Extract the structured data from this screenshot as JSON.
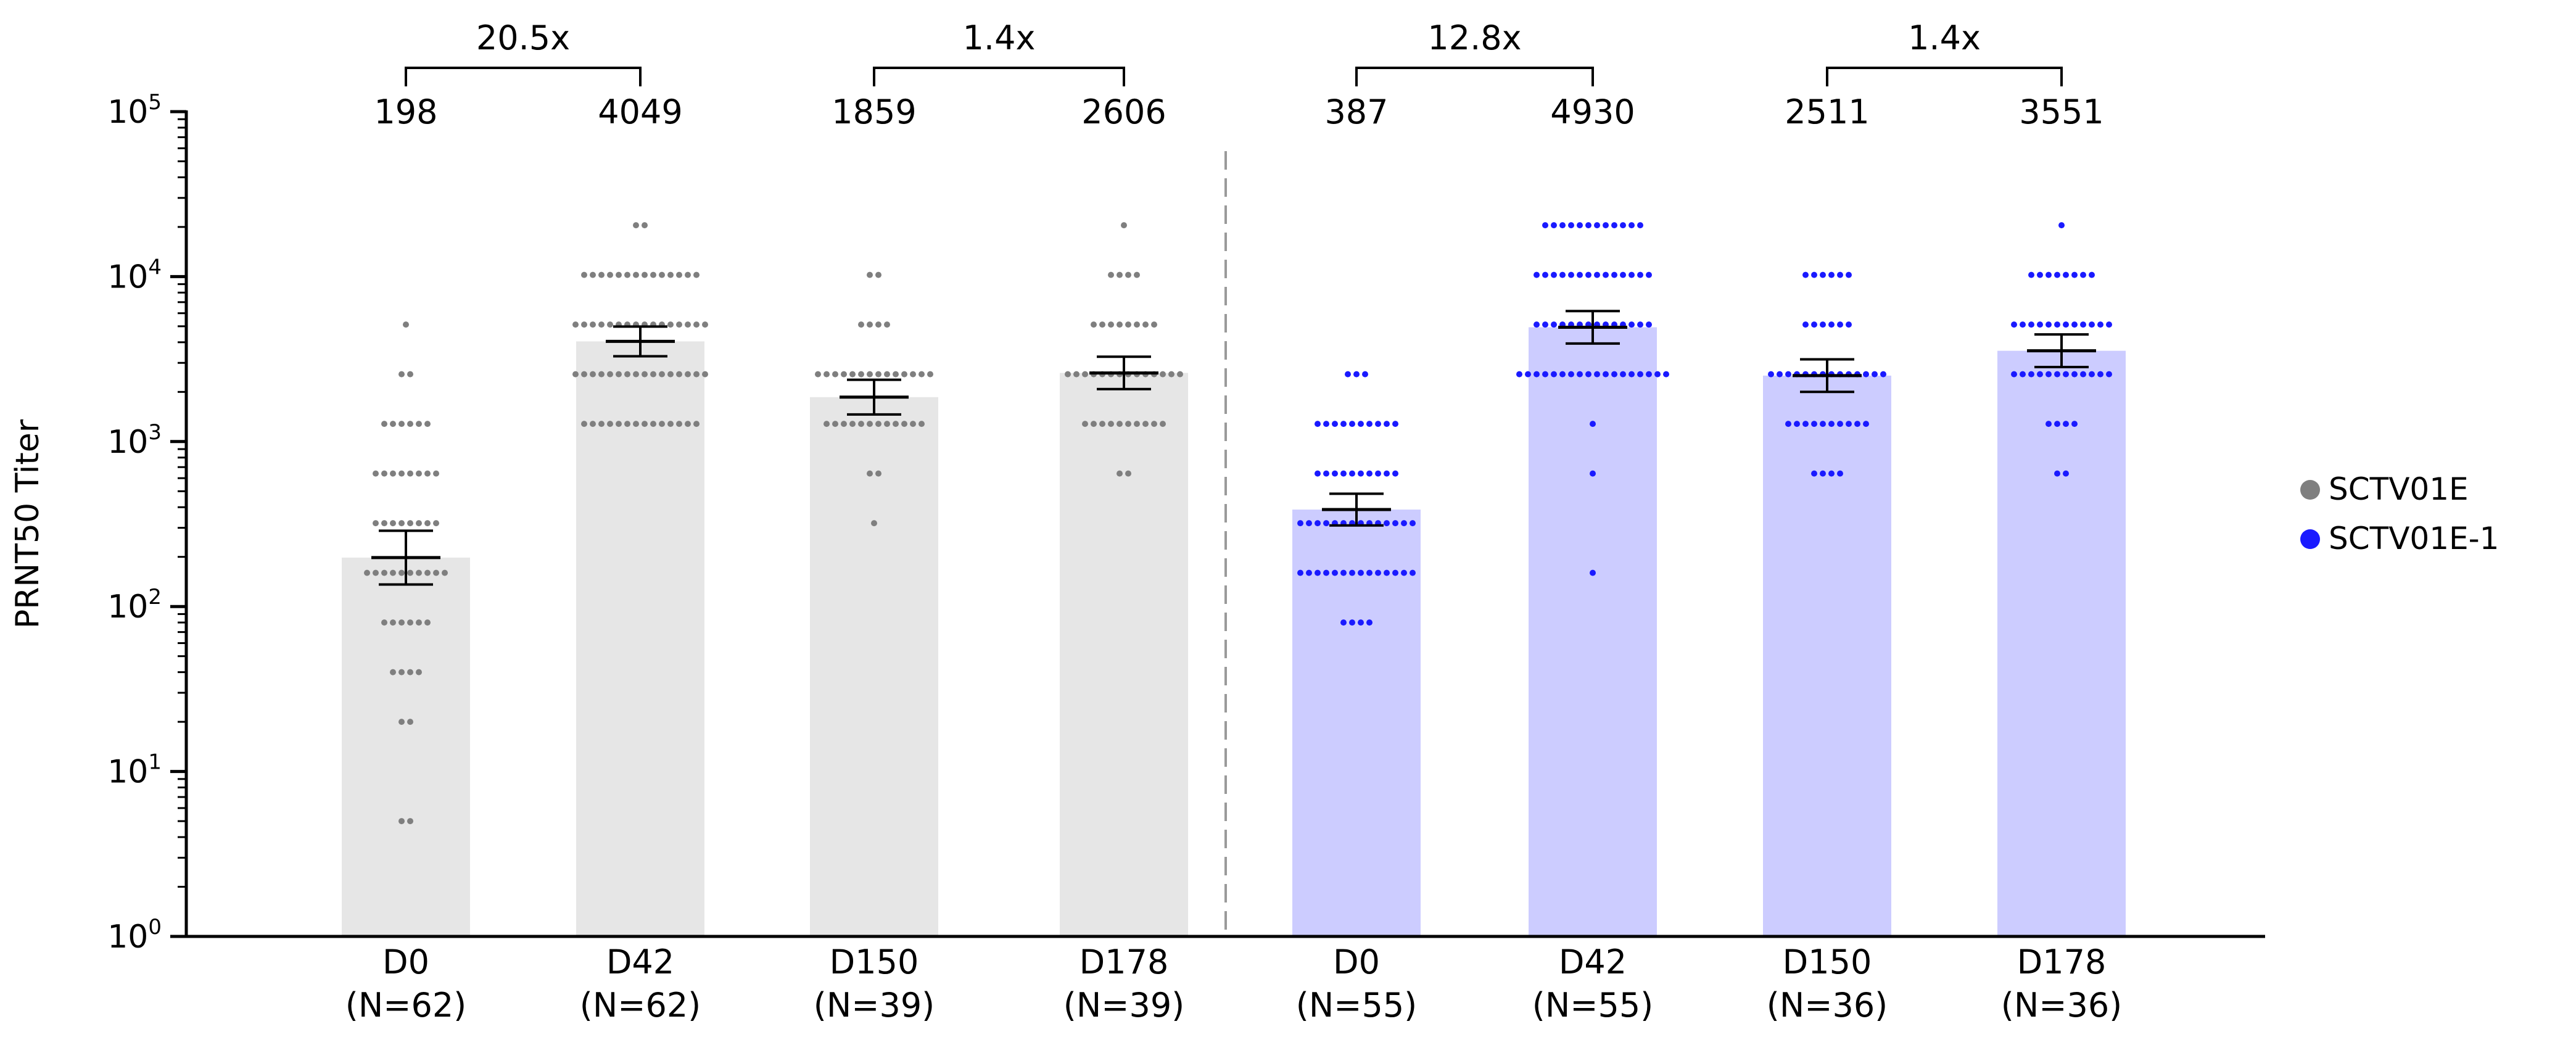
{
  "chart_data": {
    "type": "bar",
    "title": "",
    "xlabel": "",
    "ylabel": "PRNT50 Titer",
    "yscale": "log10",
    "ylim": [
      1,
      100000
    ],
    "y_ticks": [
      {
        "value": 1,
        "base": "10",
        "exp": "0"
      },
      {
        "value": 10,
        "base": "10",
        "exp": "1"
      },
      {
        "value": 100,
        "base": "10",
        "exp": "2"
      },
      {
        "value": 1000,
        "base": "10",
        "exp": "3"
      },
      {
        "value": 10000,
        "base": "10",
        "exp": "4"
      },
      {
        "value": 100000,
        "base": "10",
        "exp": "5"
      }
    ],
    "legend": [
      {
        "name": "SCTV01E",
        "color": "#7f7f7f"
      },
      {
        "name": "SCTV01E-1",
        "color": "#1a1aff"
      }
    ],
    "legend_position": "right",
    "groups": [
      {
        "series": "SCTV01E",
        "day": "D0",
        "n_label": "(N=62)",
        "gmt": 198,
        "gmt_label": "198",
        "ci": [
          136,
          288
        ],
        "bar_color": "#e6e6e6",
        "point_color": "#7f7f7f",
        "points": [
          [
            5,
            2
          ],
          [
            20,
            2
          ],
          [
            40,
            4
          ],
          [
            80,
            6
          ],
          [
            160,
            10
          ],
          [
            320,
            8
          ],
          [
            640,
            8
          ],
          [
            1280,
            6
          ],
          [
            2560,
            2
          ],
          [
            5120,
            1
          ]
        ]
      },
      {
        "series": "SCTV01E",
        "day": "D42",
        "n_label": "(N=62)",
        "gmt": 4049,
        "gmt_label": "4049",
        "ci": [
          3290,
          4980
        ],
        "bar_color": "#e6e6e6",
        "point_color": "#7f7f7f",
        "points": [
          [
            1280,
            14
          ],
          [
            2560,
            16
          ],
          [
            5120,
            16
          ],
          [
            10240,
            14
          ],
          [
            20480,
            2
          ]
        ]
      },
      {
        "series": "SCTV01E",
        "day": "D150",
        "n_label": "(N=39)",
        "gmt": 1859,
        "gmt_label": "1859",
        "ci": [
          1460,
          2370
        ],
        "bar_color": "#e6e6e6",
        "point_color": "#7f7f7f",
        "points": [
          [
            320,
            1
          ],
          [
            640,
            2
          ],
          [
            1280,
            12
          ],
          [
            2560,
            14
          ],
          [
            5120,
            4
          ],
          [
            10240,
            2
          ]
        ]
      },
      {
        "series": "SCTV01E",
        "day": "D178",
        "n_label": "(N=39)",
        "gmt": 2606,
        "gmt_label": "2606",
        "ci": [
          2080,
          3270
        ],
        "bar_color": "#e6e6e6",
        "point_color": "#7f7f7f",
        "points": [
          [
            640,
            2
          ],
          [
            1280,
            10
          ],
          [
            2560,
            14
          ],
          [
            5120,
            8
          ],
          [
            10240,
            4
          ],
          [
            20480,
            1
          ]
        ]
      },
      {
        "series": "SCTV01E-1",
        "day": "D0",
        "n_label": "(N=55)",
        "gmt": 387,
        "gmt_label": "387",
        "ci": [
          310,
          483
        ],
        "bar_color": "#ccccff",
        "point_color": "#1a1aff",
        "points": [
          [
            80,
            4
          ],
          [
            160,
            14
          ],
          [
            320,
            14
          ],
          [
            640,
            10
          ],
          [
            1280,
            10
          ],
          [
            2560,
            3
          ]
        ]
      },
      {
        "series": "SCTV01E-1",
        "day": "D42",
        "n_label": "(N=55)",
        "gmt": 4930,
        "gmt_label": "4930",
        "ci": [
          3930,
          6180
        ],
        "bar_color": "#ccccff",
        "point_color": "#1a1aff",
        "points": [
          [
            160,
            1
          ],
          [
            640,
            1
          ],
          [
            1280,
            1
          ],
          [
            2560,
            18
          ],
          [
            5120,
            14
          ],
          [
            10240,
            14
          ],
          [
            20480,
            12
          ]
        ]
      },
      {
        "series": "SCTV01E-1",
        "day": "D150",
        "n_label": "(N=36)",
        "gmt": 2511,
        "gmt_label": "2511",
        "ci": [
          2000,
          3150
        ],
        "bar_color": "#ccccff",
        "point_color": "#1a1aff",
        "points": [
          [
            640,
            4
          ],
          [
            1280,
            10
          ],
          [
            2560,
            14
          ],
          [
            5120,
            6
          ],
          [
            10240,
            6
          ]
        ]
      },
      {
        "series": "SCTV01E-1",
        "day": "D178",
        "n_label": "(N=36)",
        "gmt": 3551,
        "gmt_label": "3551",
        "ci": [
          2830,
          4460
        ],
        "bar_color": "#ccccff",
        "point_color": "#1a1aff",
        "points": [
          [
            640,
            2
          ],
          [
            1280,
            4
          ],
          [
            2560,
            12
          ],
          [
            5120,
            12
          ],
          [
            10240,
            8
          ],
          [
            20480,
            1
          ]
        ]
      }
    ],
    "fold_changes": [
      {
        "label": "20.5x",
        "from": 0,
        "to": 1
      },
      {
        "label": "1.4x",
        "from": 2,
        "to": 3
      },
      {
        "label": "12.8x",
        "from": 4,
        "to": 5
      },
      {
        "label": "1.4x",
        "from": 6,
        "to": 7
      }
    ]
  }
}
